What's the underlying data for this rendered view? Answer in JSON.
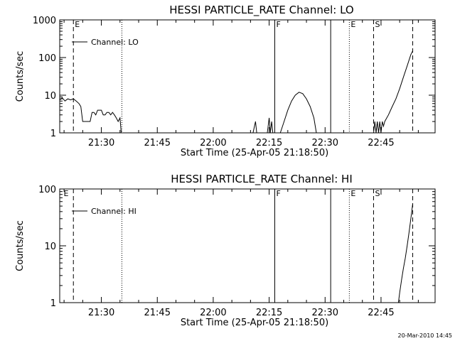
{
  "footer": {
    "timestamp": "20-Mar-2010 14:45"
  },
  "chart_data": [
    {
      "type": "line",
      "title": "HESSI PARTICLE_RATE Channel: LO",
      "xlabel": "Start Time (25-Apr-05 21:18:50)",
      "ylabel": "Counts/sec",
      "yscale": "log",
      "xrange": [
        "21:18:50",
        "22:59:30"
      ],
      "ylim": [
        1,
        1000
      ],
      "xticks": [
        "21:30",
        "21:45",
        "22:00",
        "22:15",
        "22:30",
        "22:45"
      ],
      "yticks": [
        "1",
        "10",
        "100",
        "1000"
      ],
      "legend": {
        "label": "Channel: LO",
        "position": "top-left"
      },
      "markers": [
        {
          "time": "21:22:30",
          "label": "E",
          "style": "dashed"
        },
        {
          "time": "21:35:30",
          "label": "",
          "style": "dotted"
        },
        {
          "time": "22:16:30",
          "label": "F",
          "style": "solid"
        },
        {
          "time": "22:31:30",
          "label": "",
          "style": "solid"
        },
        {
          "time": "22:36:30",
          "label": "E",
          "style": "dotted"
        },
        {
          "time": "22:43:00",
          "label": "S",
          "style": "dashed"
        },
        {
          "time": "22:53:30",
          "label": "",
          "style": "dashed"
        }
      ],
      "series": [
        {
          "segments": [
            [
              [
                "21:18:50",
                7.5
              ],
              [
                "21:19:30",
                8.5
              ],
              [
                "21:20:15",
                7
              ],
              [
                "21:21:00",
                8
              ],
              [
                "21:21:45",
                7.5
              ],
              [
                "21:22:30",
                8
              ],
              [
                "21:23:15",
                7
              ],
              [
                "21:24:00",
                6
              ],
              [
                "21:24:30",
                5
              ],
              [
                "21:25:00",
                2
              ],
              [
                "21:26:00",
                2
              ],
              [
                "21:27:00",
                2
              ],
              [
                "21:27:30",
                3.5
              ],
              [
                "21:28:00",
                3.5
              ],
              [
                "21:28:30",
                3
              ],
              [
                "21:29:00",
                4
              ],
              [
                "21:30:00",
                4
              ],
              [
                "21:30:30",
                3
              ],
              [
                "21:31:00",
                3
              ],
              [
                "21:31:30",
                3.5
              ],
              [
                "21:32:00",
                3.5
              ],
              [
                "21:32:30",
                3
              ],
              [
                "21:33:00",
                3.5
              ],
              [
                "21:33:30",
                3
              ],
              [
                "21:34:00",
                2.5
              ],
              [
                "21:34:30",
                2
              ],
              [
                "21:35:00",
                2.5
              ],
              [
                "21:35:20",
                1
              ]
            ],
            [
              [
                "22:10:40",
                1
              ],
              [
                "22:11:20",
                2
              ],
              [
                "22:11:40",
                1
              ]
            ],
            [
              [
                "22:14:30",
                1
              ],
              [
                "22:15:00",
                2.5
              ],
              [
                "22:15:20",
                1
              ],
              [
                "22:15:40",
                2
              ],
              [
                "22:16:00",
                1
              ]
            ],
            [
              [
                "22:18:00",
                1
              ],
              [
                "22:19:00",
                2
              ],
              [
                "22:20:00",
                4
              ],
              [
                "22:21:00",
                7
              ],
              [
                "22:22:00",
                10
              ],
              [
                "22:23:00",
                12
              ],
              [
                "22:24:00",
                11
              ],
              [
                "22:25:00",
                8
              ],
              [
                "22:26:00",
                5
              ],
              [
                "22:27:00",
                2.5
              ],
              [
                "22:27:40",
                1
              ]
            ],
            [
              [
                "22:43:00",
                1
              ],
              [
                "22:43:20",
                2
              ],
              [
                "22:43:40",
                1
              ],
              [
                "22:44:00",
                2
              ],
              [
                "22:44:20",
                1
              ],
              [
                "22:44:40",
                2
              ],
              [
                "22:45:00",
                1
              ],
              [
                "22:45:20",
                2
              ],
              [
                "22:45:40",
                1.5
              ],
              [
                "22:46:00",
                2
              ],
              [
                "22:47:00",
                3
              ],
              [
                "22:48:00",
                5
              ],
              [
                "22:49:00",
                8
              ],
              [
                "22:50:00",
                15
              ],
              [
                "22:51:00",
                30
              ],
              [
                "22:52:00",
                60
              ],
              [
                "22:53:00",
                120
              ],
              [
                "22:53:30",
                150
              ]
            ]
          ]
        }
      ]
    },
    {
      "type": "line",
      "title": "HESSI PARTICLE_RATE Channel: HI",
      "xlabel": "Start Time (25-Apr-05 21:18:50)",
      "ylabel": "Counts/sec",
      "yscale": "log",
      "xrange": [
        "21:18:50",
        "22:59:30"
      ],
      "ylim": [
        1,
        100
      ],
      "xticks": [
        "21:30",
        "21:45",
        "22:00",
        "22:15",
        "22:30",
        "22:45"
      ],
      "yticks": [
        "1",
        "10",
        "100"
      ],
      "legend": {
        "label": "Channel: HI",
        "position": "top-left"
      },
      "markers": [
        {
          "time": "21:19:30",
          "label": "E",
          "style": "none"
        },
        {
          "time": "21:22:30",
          "label": "",
          "style": "dashed"
        },
        {
          "time": "21:35:30",
          "label": "",
          "style": "dotted"
        },
        {
          "time": "22:16:30",
          "label": "F",
          "style": "solid"
        },
        {
          "time": "22:31:30",
          "label": "",
          "style": "solid"
        },
        {
          "time": "22:36:30",
          "label": "E",
          "style": "dotted"
        },
        {
          "time": "22:43:00",
          "label": "S",
          "style": "dashed"
        },
        {
          "time": "22:53:30",
          "label": "",
          "style": "dashed"
        }
      ],
      "series": [
        {
          "segments": [
            [
              [
                "22:49:40",
                1
              ],
              [
                "22:50:00",
                1.5
              ],
              [
                "22:50:30",
                2.5
              ],
              [
                "22:51:00",
                4
              ],
              [
                "22:51:30",
                6
              ],
              [
                "22:52:00",
                10
              ],
              [
                "22:52:30",
                17
              ],
              [
                "22:53:00",
                30
              ],
              [
                "22:53:30",
                55
              ]
            ]
          ]
        }
      ]
    }
  ]
}
